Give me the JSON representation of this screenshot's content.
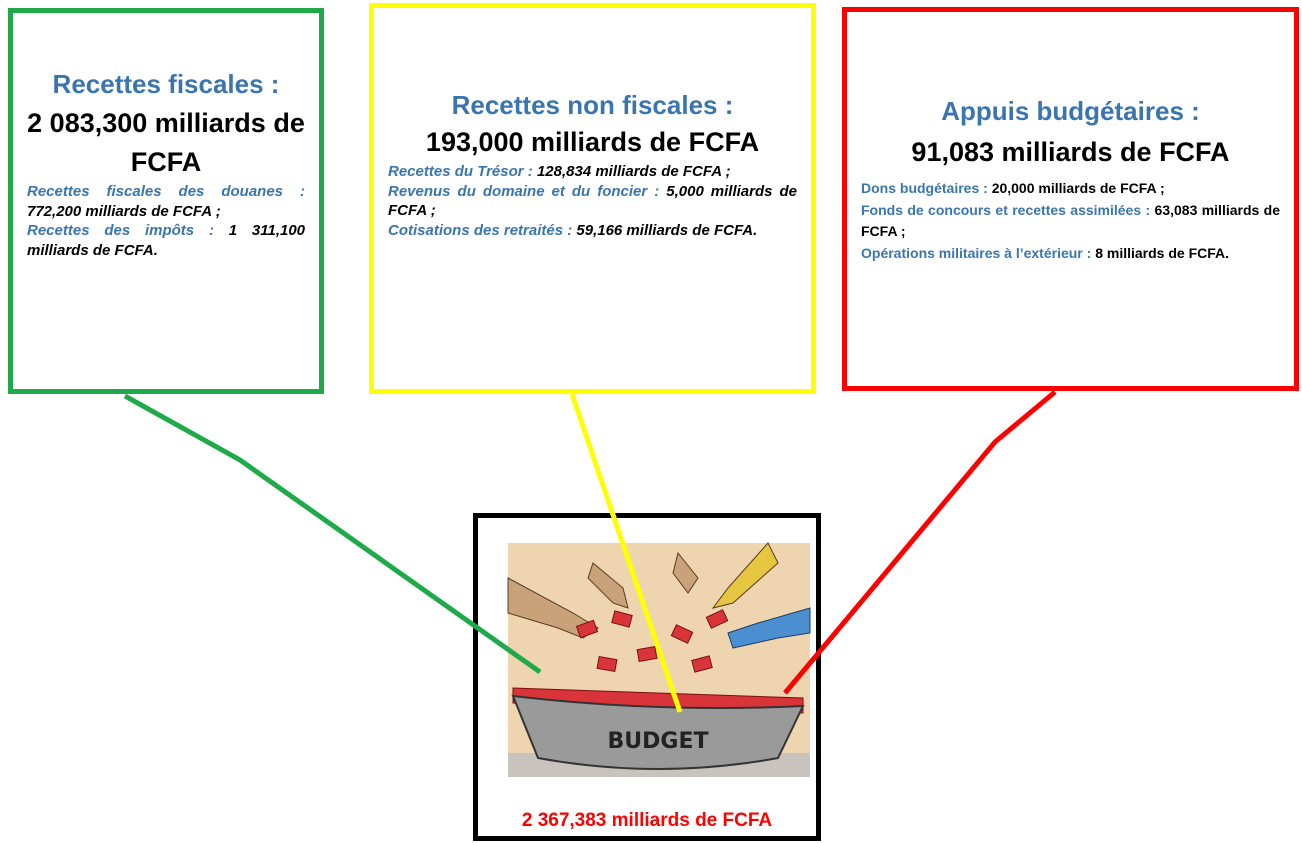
{
  "boxes": [
    {
      "title": "Recettes fiscales :",
      "amount": "2 083,300 milliards de FCFA",
      "items": [
        {
          "label": "Recettes fiscales des douanes :",
          "value": "772,200 milliards de FCFA ;"
        },
        {
          "label": "Recettes des impôts :",
          "value": "1 311,100 milliards de FCFA."
        }
      ]
    },
    {
      "title": "Recettes non fiscales :",
      "amount": "193,000 milliards de FCFA",
      "items": [
        {
          "label": "Recettes du Trésor :",
          "value": "128,834 milliards de FCFA ;"
        },
        {
          "label": "Revenus du domaine et du foncier :",
          "value": "5,000 milliards de FCFA ;"
        },
        {
          "label": "Cotisations des retraités :",
          "value": "59,166 milliards de FCFA."
        }
      ]
    },
    {
      "title": "Appuis budgétaires :",
      "amount": "91,083 milliards de FCFA",
      "items": [
        {
          "label": "Dons budgétaires :",
          "value": "20,000 milliards de FCFA ;"
        },
        {
          "label": "Fonds de concours et recettes assimilées :",
          "value": "63,083 milliards de FCFA ;"
        },
        {
          "label": "Opérations militaires à l’extérieur :",
          "value": "8 milliards de FCFA."
        }
      ]
    }
  ],
  "center": {
    "image_label": "BUDGET",
    "total": "2 367,383 milliards de FCFA"
  }
}
